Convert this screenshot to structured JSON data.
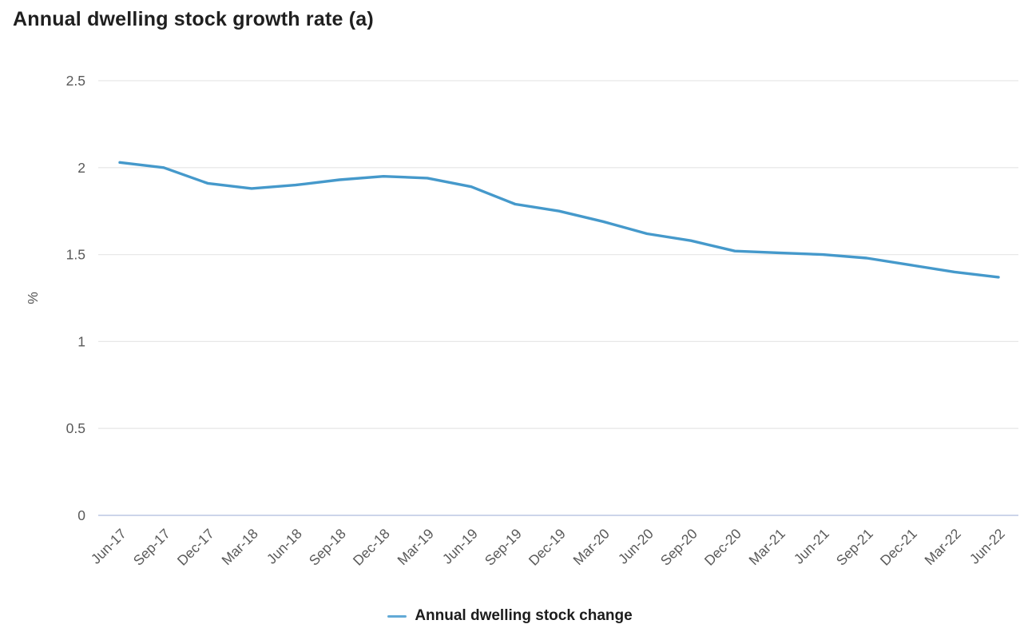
{
  "page": {
    "background": "#ffffff"
  },
  "chart_data": {
    "type": "line",
    "title": "Annual dwelling stock growth rate (a)",
    "xlabel": "",
    "ylabel": "%",
    "ylim": [
      0,
      2.5
    ],
    "grid": true,
    "legend_position": "bottom",
    "series": [
      {
        "name": "Annual dwelling stock change",
        "color": "#4599cb",
        "values": [
          2.03,
          2.0,
          1.91,
          1.88,
          1.9,
          1.93,
          1.95,
          1.94,
          1.89,
          1.79,
          1.75,
          1.69,
          1.62,
          1.58,
          1.52,
          1.51,
          1.5,
          1.48,
          1.44,
          1.4,
          1.37
        ]
      }
    ],
    "categories": [
      "Jun-17",
      "Sep-17",
      "Dec-17",
      "Mar-18",
      "Jun-18",
      "Sep-18",
      "Dec-18",
      "Mar-19",
      "Jun-19",
      "Sep-19",
      "Dec-19",
      "Mar-20",
      "Jun-20",
      "Sep-20",
      "Dec-20",
      "Mar-21",
      "Jun-21",
      "Sep-21",
      "Dec-21",
      "Mar-22",
      "Jun-22"
    ],
    "yticks": {
      "values": [
        0,
        0.5,
        1,
        1.5,
        2,
        2.5
      ],
      "labels": [
        "0",
        "0.5",
        "1",
        "1.5",
        "2",
        "2.5"
      ]
    }
  },
  "legend": {
    "label": "Annual dwelling stock change"
  },
  "colors": {
    "line": "#4599cb",
    "legend_marker": "#62aad6",
    "gridline": "#e8e8e8",
    "zero_axis": "#ccd5ea",
    "tick_text": "#595959",
    "title_text": "#1f1f1f"
  }
}
